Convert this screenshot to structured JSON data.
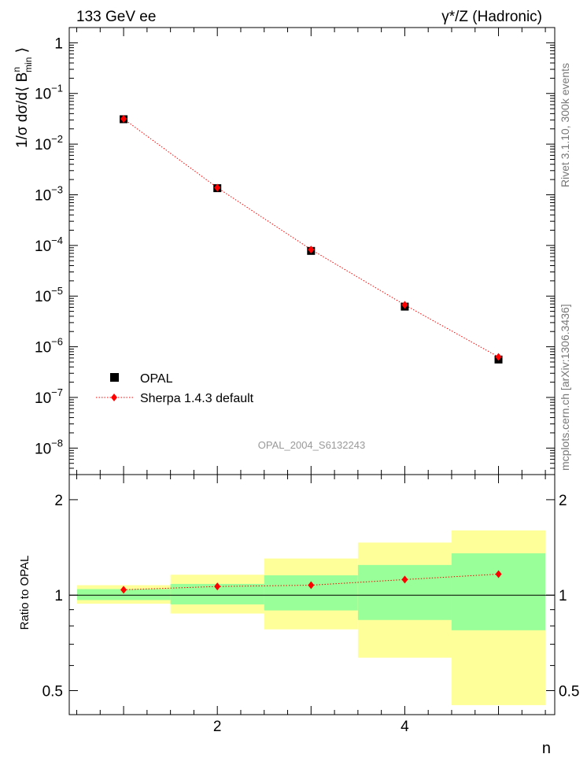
{
  "header": {
    "left_label": "133 GeV ee",
    "right_label": "γ*/Z (Hadronic)"
  },
  "side_text": {
    "rivet": "Rivet 3.1.10,  300k events",
    "mcplots": "mcplots.cern.ch [arXiv:1306.3436]"
  },
  "colors": {
    "mc": "#ff0000",
    "band_stat": "#99ff99",
    "band_total": "#ffff99",
    "data": "#000000"
  },
  "chart_data": [
    {
      "type": "scatter",
      "panel": "main",
      "ylabel": "1/σ dσ/d⟨ B^n_min ⟩",
      "yscale": "log",
      "ylim": [
        3e-09,
        2.0
      ],
      "xlim": [
        0.42,
        5.6
      ],
      "y_ticks": [
        {
          "value": 1,
          "label": "1"
        },
        {
          "value": 0.1,
          "base": "10",
          "exp": "−1"
        },
        {
          "value": 0.01,
          "base": "10",
          "exp": "−2"
        },
        {
          "value": 0.001,
          "base": "10",
          "exp": "−3"
        },
        {
          "value": 0.0001,
          "base": "10",
          "exp": "−4"
        },
        {
          "value": 1e-05,
          "base": "10",
          "exp": "−5"
        },
        {
          "value": 1e-06,
          "base": "10",
          "exp": "−6"
        },
        {
          "value": 1e-07,
          "base": "10",
          "exp": "−7"
        },
        {
          "value": 1e-08,
          "base": "10",
          "exp": "−8"
        }
      ],
      "watermark": "OPAL_2004_S6132243",
      "legend_position": "bottom-left",
      "series": [
        {
          "name": "OPAL",
          "style": "square-marker",
          "x": [
            1,
            2,
            3,
            4,
            5
          ],
          "y": [
            0.031,
            0.00135,
            7.8e-05,
            6.2e-06,
            5.6e-07
          ]
        },
        {
          "name": "Sherpa 1.4.3 default",
          "style": "red-diamond-dotted-line",
          "x": [
            1,
            2,
            3,
            4,
            5
          ],
          "y": [
            0.0315,
            0.00138,
            8.3e-05,
            6.7e-06,
            6.3e-07
          ]
        }
      ]
    },
    {
      "type": "line",
      "panel": "ratio",
      "ylabel": "Ratio to OPAL",
      "xlabel": "n",
      "yscale": "log",
      "ylim": [
        0.42,
        2.4
      ],
      "xlim": [
        0.42,
        5.6
      ],
      "y_ticks": [
        0.5,
        1,
        2
      ],
      "x_ticks": [
        2,
        4
      ],
      "reference_line": 1,
      "bins": [
        {
          "x_low": 0.5,
          "x_high": 1.5,
          "stat_low": 0.965,
          "stat_high": 1.045,
          "total_low": 0.94,
          "total_high": 1.075
        },
        {
          "x_low": 1.5,
          "x_high": 2.5,
          "stat_low": 0.935,
          "stat_high": 1.085,
          "total_low": 0.875,
          "total_high": 1.16
        },
        {
          "x_low": 2.5,
          "x_high": 3.5,
          "stat_low": 0.895,
          "stat_high": 1.155,
          "total_low": 0.78,
          "total_high": 1.305
        },
        {
          "x_low": 3.5,
          "x_high": 4.5,
          "stat_low": 0.835,
          "stat_high": 1.245,
          "total_low": 0.635,
          "total_high": 1.465
        },
        {
          "x_low": 4.5,
          "x_high": 5.5,
          "stat_low": 0.775,
          "stat_high": 1.355,
          "total_low": 0.45,
          "total_high": 1.6
        }
      ],
      "series": [
        {
          "name": "Sherpa 1.4.3 default",
          "x": [
            1,
            2,
            3,
            4,
            5
          ],
          "y": [
            1.04,
            1.065,
            1.075,
            1.12,
            1.165
          ]
        }
      ]
    }
  ]
}
